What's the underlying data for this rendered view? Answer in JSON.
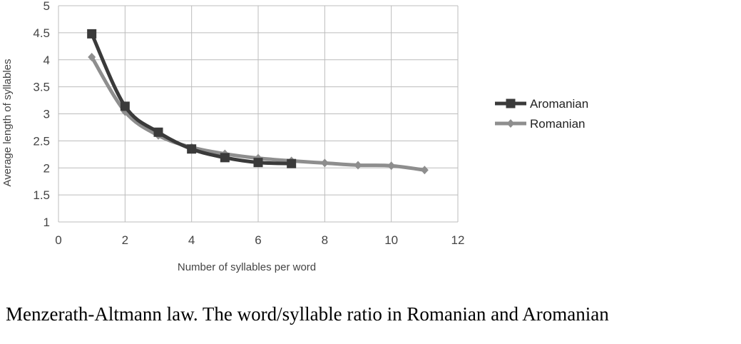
{
  "chart_data": {
    "type": "line",
    "xlabel": "Number of syllables per word",
    "ylabel": "Average length of syllables",
    "xlim": [
      0,
      12
    ],
    "ylim": [
      1,
      5
    ],
    "x_ticks": [
      0,
      2,
      4,
      6,
      8,
      10,
      12
    ],
    "y_ticks": [
      1,
      1.5,
      2,
      2.5,
      3,
      3.5,
      4,
      4.5,
      5
    ],
    "grid": "on",
    "legend_position": "right",
    "series": [
      {
        "name": "Aromanian",
        "color": "#3a3a3a",
        "marker": "square",
        "x": [
          1,
          2,
          3,
          4,
          5,
          6,
          7
        ],
        "y": [
          4.48,
          3.14,
          2.66,
          2.35,
          2.19,
          2.1,
          2.08
        ]
      },
      {
        "name": "Romanian",
        "color": "#8e8e8e",
        "marker": "diamond",
        "x": [
          1,
          2,
          3,
          4,
          5,
          6,
          7,
          8,
          9,
          10,
          11
        ],
        "y": [
          4.05,
          3.04,
          2.6,
          2.38,
          2.26,
          2.18,
          2.13,
          2.09,
          2.05,
          2.04,
          1.96
        ]
      }
    ]
  },
  "caption": "Menzerath-Altmann law. The word/syllable ratio in Romanian and Aromanian"
}
